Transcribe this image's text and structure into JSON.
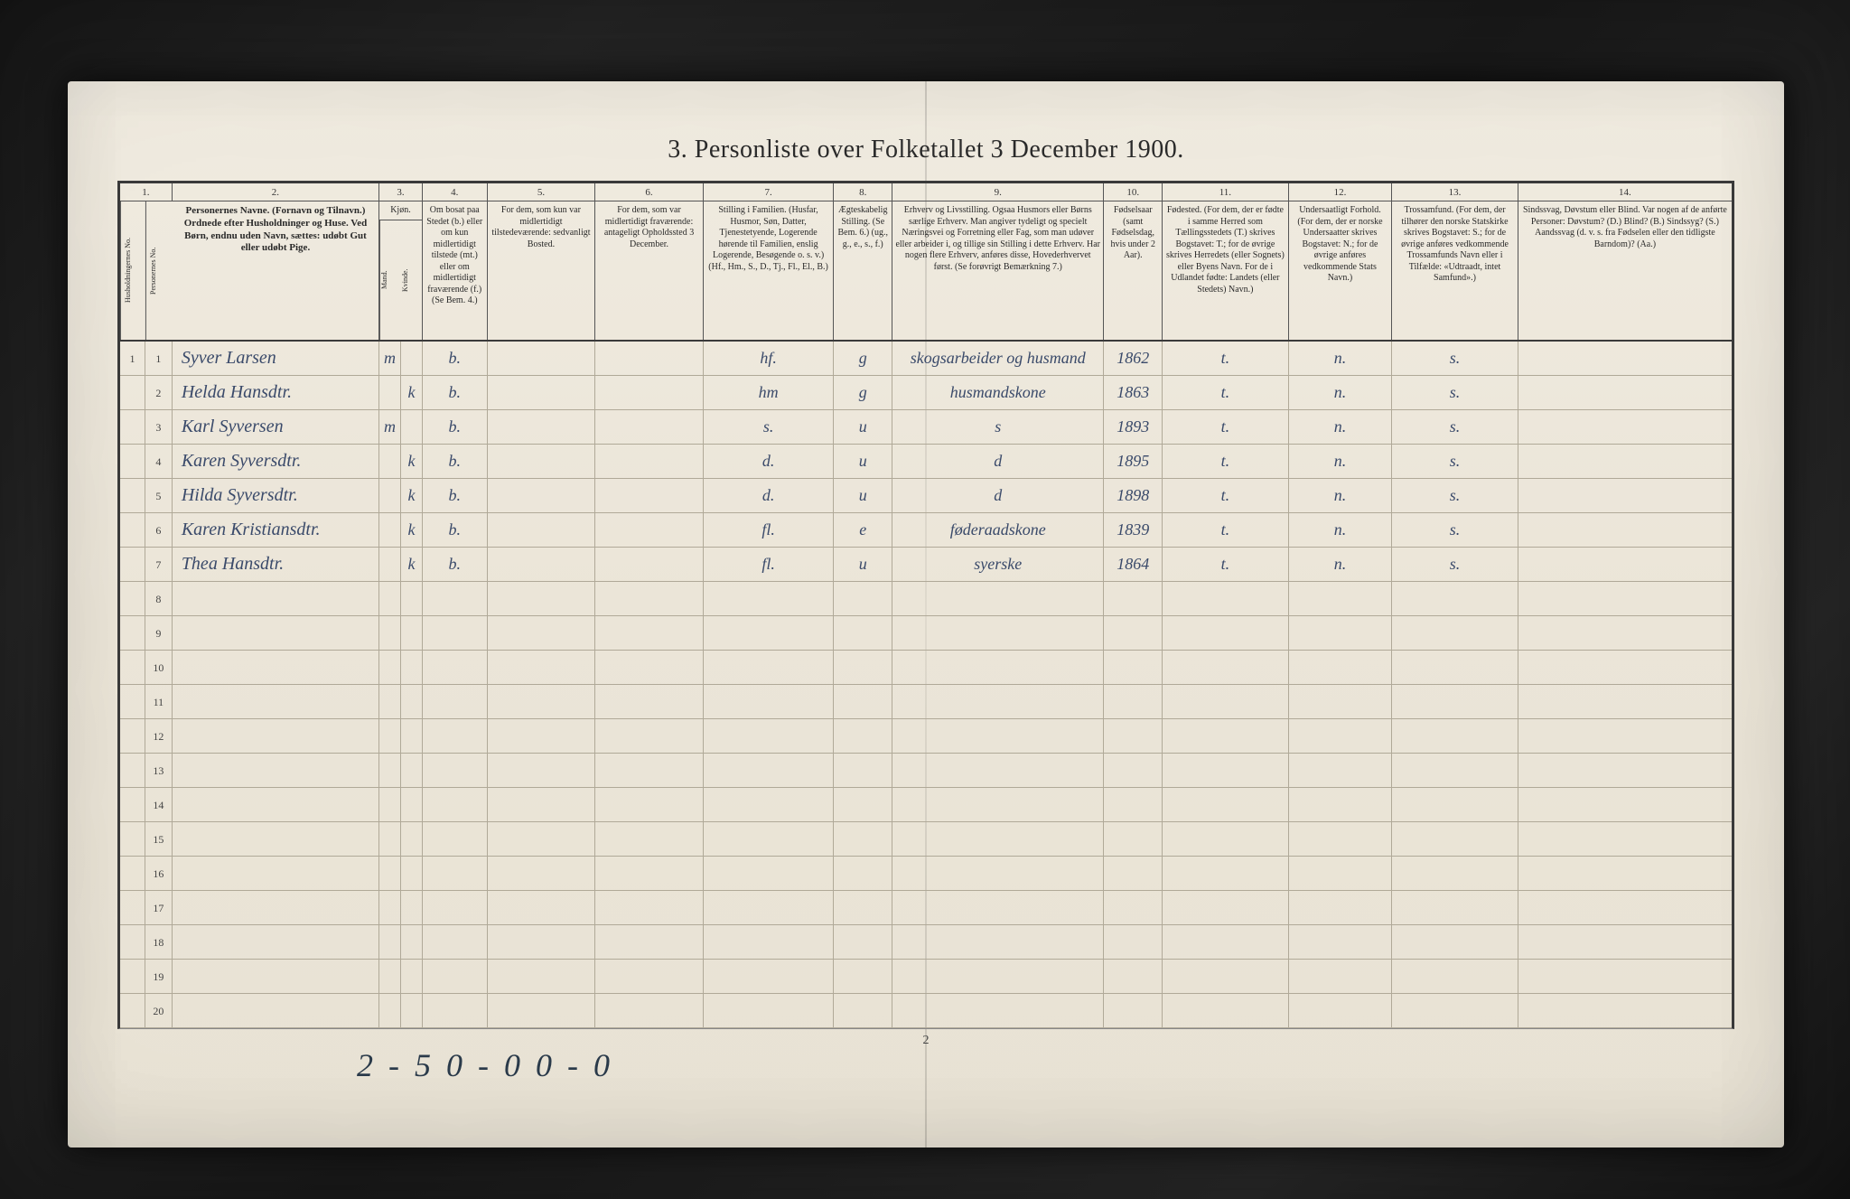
{
  "title": "3. Personliste over Folketallet 3 December 1900.",
  "colnums": [
    "1.",
    "2.",
    "3.",
    "4.",
    "5.",
    "6.",
    "7.",
    "8.",
    "9.",
    "10.",
    "11.",
    "12.",
    "13.",
    "14."
  ],
  "headers": {
    "c1": "Husholdningernes No.",
    "c1b": "Personernes No.",
    "c2": "Personernes Navne.\n(Fornavn og Tilnavn.)\nOrdnede efter Husholdninger og Huse.\nVed Børn, endnu uden Navn, sættes: udøbt Gut eller udøbt Pige.",
    "c3": "Kjøn.",
    "c3sub": [
      "Mand.",
      "Kvinde."
    ],
    "c4": "Om bosat paa Stedet (b.) eller om kun midlertidigt tilstede (mt.) eller om midlertidigt fraværende (f.) (Se Bem. 4.)",
    "c5": "For dem, som kun var midlertidigt tilstedeværende:\nsedvanligt Bosted.",
    "c6": "For dem, som var midlertidigt fraværende:\nantageligt Opholdssted 3 December.",
    "c7": "Stilling i Familien.\n(Husfar, Husmor, Søn, Datter, Tjenestetyende, Logerende hørende til Familien, enslig Logerende, Besøgende o. s. v.)\n(Hf., Hm., S., D., Tj., Fl., El., B.)",
    "c8": "Ægteskabelig Stilling.\n(Se Bem. 6.)\n(ug., g., e., s., f.)",
    "c9": "Erhverv og Livsstilling.\nOgsaa Husmors eller Børns særlige Erhverv. Man angiver tydeligt og specielt Næringsvei og Forretning eller Fag, som man udøver eller arbeider i, og tillige sin Stilling i dette Erhverv. Har nogen flere Erhverv, anføres disse, Hovederhvervet først.\n(Se forøvrigt Bemærkning 7.)",
    "c10": "Fødselsaar\n(samt Fødselsdag, hvis under 2 Aar).",
    "c11": "Fødested.\n(For dem, der er fødte i samme Herred som Tællingsstedets (T.) skrives Bogstavet: T.; for de øvrige skrives Herredets (eller Sognets) eller Byens Navn. For de i Udlandet fødte: Landets (eller Stedets) Navn.)",
    "c12": "Undersaatligt Forhold.\n(For dem, der er norske Undersaatter skrives Bogstavet: N.; for de øvrige anføres vedkommende Stats Navn.)",
    "c13": "Trossamfund.\n(For dem, der tilhører den norske Statskirke skrives Bogstavet: S.; for de øvrige anføres vedkommende Trossamfunds Navn eller i Tilfælde: «Udtraadt, intet Samfund».)",
    "c14": "Sindssvag, Døvstum eller Blind.\nVar nogen af de anførte Personer:\nDøvstum?  (D.)\nBlind?  (B.)\nSindssyg?  (S.)\nAandssvag (d. v. s. fra Fødselen eller den tidligste Barndom)? (Aa.)"
  },
  "rows": [
    {
      "n": "1",
      "name": "Syver Larsen",
      "m": "m",
      "k": "",
      "res": "b.",
      "c7": "hf.",
      "c8": "g",
      "c9": "skogsarbeider og husmand",
      "c10": "1862",
      "c11": "t.",
      "c12": "n.",
      "c13": "s."
    },
    {
      "n": "2",
      "name": "Helda Hansdtr.",
      "m": "",
      "k": "k",
      "res": "b.",
      "c7": "hm",
      "c8": "g",
      "c9": "husmandskone",
      "c10": "1863",
      "c11": "t.",
      "c12": "n.",
      "c13": "s."
    },
    {
      "n": "3",
      "name": "Karl Syversen",
      "m": "m",
      "k": "",
      "res": "b.",
      "c7": "s.",
      "c8": "u",
      "c9": "s",
      "c10": "1893",
      "c11": "t.",
      "c12": "n.",
      "c13": "s."
    },
    {
      "n": "4",
      "name": "Karen Syversdtr.",
      "m": "",
      "k": "k",
      "res": "b.",
      "c7": "d.",
      "c8": "u",
      "c9": "d",
      "c10": "1895",
      "c11": "t.",
      "c12": "n.",
      "c13": "s."
    },
    {
      "n": "5",
      "name": "Hilda Syversdtr.",
      "m": "",
      "k": "k",
      "res": "b.",
      "c7": "d.",
      "c8": "u",
      "c9": "d",
      "c10": "1898",
      "c11": "t.",
      "c12": "n.",
      "c13": "s."
    },
    {
      "n": "6",
      "name": "Karen Kristiansdtr.",
      "m": "",
      "k": "k",
      "res": "b.",
      "c7": "fl.",
      "c8": "e",
      "c9": "føderaadskone",
      "c10": "1839",
      "c11": "t.",
      "c12": "n.",
      "c13": "s."
    },
    {
      "n": "7",
      "name": "Thea Hansdtr.",
      "m": "",
      "k": "k",
      "res": "b.",
      "c7": "fl.",
      "c8": "u",
      "c9": "syerske",
      "c10": "1864",
      "c11": "t.",
      "c12": "n.",
      "c13": "s."
    }
  ],
  "blankRows": 13,
  "footer": "2 - 5   0 - 0   0 - 0",
  "pageNumBottom": "2",
  "colors": {
    "pageBg": "#ece6d9",
    "ink": "#2a2a2a",
    "scriptInk": "#3a4a6a",
    "ruleDark": "#3a3a3a",
    "ruleLight": "#b0a998"
  }
}
